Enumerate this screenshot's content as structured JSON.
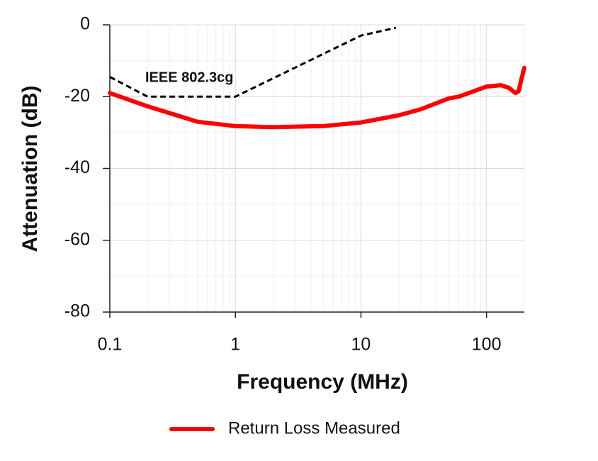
{
  "chart_data": {
    "type": "line",
    "xscale": "log",
    "grid": true,
    "x_label": "Frequency (MHz)",
    "y_label": "Attenuation (dB)",
    "xlim": [
      0.1,
      200
    ],
    "ylim": [
      -80,
      0
    ],
    "xticks": [
      0.1,
      1,
      10,
      100
    ],
    "yticks": [
      0,
      -20,
      -40,
      -60,
      -80
    ],
    "xminor": [
      0.2,
      0.3,
      0.4,
      0.5,
      0.6,
      0.7,
      0.8,
      0.9,
      2,
      3,
      4,
      5,
      6,
      7,
      8,
      9,
      20,
      30,
      40,
      50,
      60,
      70,
      80,
      90,
      200
    ],
    "yminor": [
      -10,
      -30,
      -50,
      -70
    ],
    "legend": "bottom",
    "series": [
      {
        "name": "Return Loss Measured",
        "color": "#ff0000",
        "x": [
          0.1,
          0.2,
          0.5,
          1,
          2,
          5,
          10,
          20,
          30,
          50,
          60,
          100,
          130,
          150,
          170,
          180,
          190,
          200
        ],
        "values": [
          -19,
          -22.7,
          -27,
          -28.2,
          -28.5,
          -28.2,
          -27.2,
          -25.2,
          -23.5,
          -20.5,
          -20,
          -17.2,
          -16.8,
          -17.5,
          -19,
          -18.5,
          -15,
          -12
        ]
      }
    ],
    "annotations": [
      {
        "text": "IEEE 802.3cg",
        "color": "#000000",
        "dash": true,
        "x": [
          0.1,
          0.2,
          1,
          10,
          19
        ],
        "values": [
          -14.5,
          -20,
          -20,
          -3,
          -0.8
        ]
      }
    ]
  }
}
